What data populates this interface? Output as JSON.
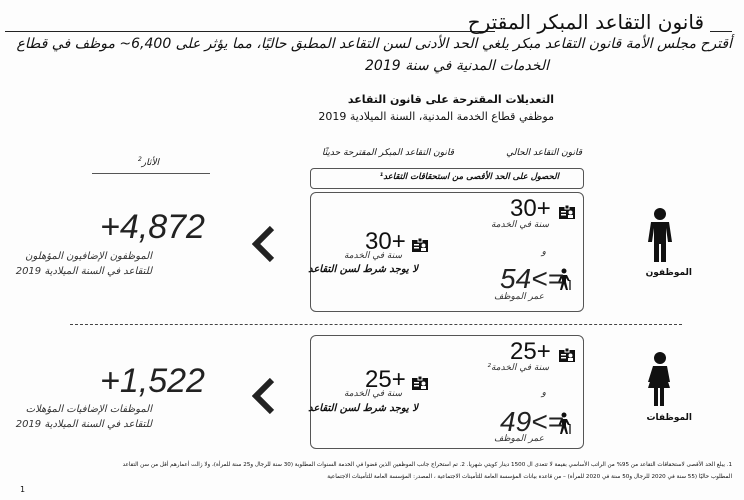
{
  "title": "قانون التقاعد المبكر المقترح",
  "intro": {
    "line1": "أقترح مجلس الأمة قانون التقاعد مبكر يلغي الحد الأدنى لسن التقاعد المطبق حاليًا، مما يؤثر على 6,400~ موظف في قطاع",
    "line2": "الخدمات المدنية في سنة 2019"
  },
  "section": {
    "heading": "التعديلات المقترحة على قانون التقاعد",
    "subheading": "موظفي قطاع الخدمة المدنية، السنة الميلادية 2019"
  },
  "columns": {
    "current": "قانون التقاعد الحالي",
    "proposed": "قانون التقاعد المبكر المقترحة حديثًا",
    "impact": "الأثار",
    "impact_note": "2"
  },
  "banner": "الحصول على الحد الأقصى من استحقاقات التقاعد¹",
  "rows": [
    {
      "group_label": "الموظفون",
      "group_icon": "male-person-icon",
      "current_service": "30+",
      "current_service_label": "سنة في الخدمة",
      "and": "و",
      "current_age": "54<=",
      "current_age_label": "عمر الموظف",
      "proposed_service": "30+",
      "proposed_service_label": "سنة في الخدمة",
      "proposed_age_condition": "لا يوجد شرط لسن التقاعد",
      "impact_value": "+4,872",
      "impact_label1": "الموظفون الإضافيون المؤهلون",
      "impact_label2": "للتقاعد في السنة الميلادية 2019"
    },
    {
      "group_label": "الموظفات",
      "group_icon": "female-person-icon",
      "current_service": "25+",
      "current_service_label": "سنة في الخدمة²",
      "and": "و",
      "current_age": "49<=",
      "current_age_label": "عمر الموظف",
      "proposed_service": "25+",
      "proposed_service_label": "سنة في الخدمة",
      "proposed_age_condition": "لا يوجد شرط لسن التقاعد",
      "impact_value": "+1,522",
      "impact_label1": "الموظفات الإضافيات المؤهلات",
      "impact_label2": "للتقاعد في السنة الميلادية 2019"
    }
  ],
  "footnote": {
    "line1": "1. يبلغ الحد الأقصى لاستحقاقات التقاعد من 95% من الراتب الأساسي بقيمة لا تتعدى ال 1500 دينار كويتي شهريا. 2. تم استخراج جانب الموظفين الذين قضوا في الخدمة السنوات المطلوبة (30 سنة للرجال و25 سنة للمرأة)، ولا زالت أعمارهم أقل من سن التقاعد",
    "line2": "المطلوب حاليًا (55 سنة في 2020 للرجال و50 سنة في 2020 للمرأة) – من قاعدة بيانات المؤسسة العامة للتأمينات الاجتماعية ، المصدر: المؤسسة العامة للتأمينات الاجتماعية"
  },
  "page_number": "1"
}
